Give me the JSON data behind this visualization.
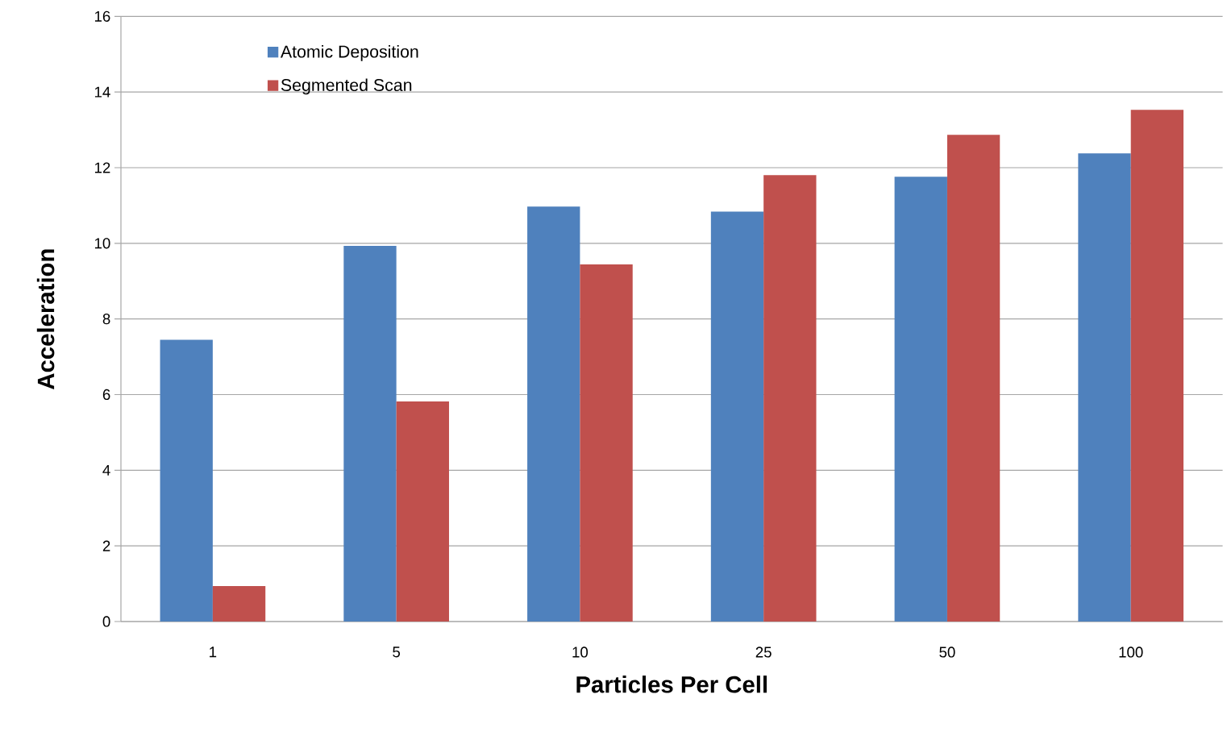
{
  "chart_data": {
    "type": "bar",
    "xlabel": "Particles Per Cell",
    "ylabel": "Acceleration",
    "categories": [
      "1",
      "5",
      "10",
      "25",
      "50",
      "100"
    ],
    "series": [
      {
        "name": "Atomic Deposition",
        "color": "#4f81bd",
        "values": [
          7.45,
          9.93,
          10.97,
          10.84,
          11.76,
          12.38
        ]
      },
      {
        "name": "Segmented Scan",
        "color": "#c0504d",
        "values": [
          0.94,
          5.82,
          9.44,
          11.8,
          12.87,
          13.53
        ]
      }
    ],
    "ylim": [
      0,
      16
    ],
    "yticks": [
      0,
      2,
      4,
      6,
      8,
      10,
      12,
      14,
      16
    ],
    "grid": "y",
    "legend": "top left"
  }
}
